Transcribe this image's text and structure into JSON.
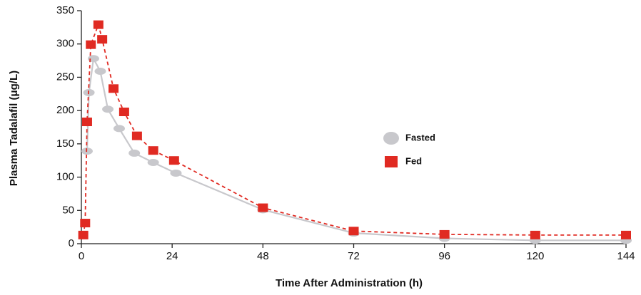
{
  "chart_data": {
    "type": "line",
    "x_label": "Time After Administration (h)",
    "y_label": "Plasma Tadalafil (μg/L)",
    "xlim": [
      0,
      144
    ],
    "xticks": [
      0,
      24,
      48,
      72,
      96,
      120,
      144
    ],
    "ylim": [
      0,
      350
    ],
    "yticks": [
      0,
      50,
      100,
      150,
      200,
      250,
      300,
      350
    ],
    "grid": false,
    "legend": "center",
    "series": [
      {
        "name": "Fasted",
        "color": "#c8c8cc",
        "marker": "ellipse",
        "dashed": false,
        "x": [
          1.5,
          2,
          3.2,
          5,
          7,
          10,
          14,
          19,
          25,
          48,
          72,
          96,
          120,
          144
        ],
        "values": [
          139,
          227,
          278,
          259,
          202,
          173,
          136,
          122,
          106,
          51,
          16,
          8,
          5,
          5
        ]
      },
      {
        "name": "Fed",
        "color": "#e02a22",
        "marker": "square",
        "dashed": true,
        "x": [
          0.5,
          1,
          1.5,
          2.5,
          4.5,
          5.5,
          8.5,
          11.3,
          14.7,
          19,
          24.5,
          48,
          72,
          96,
          120,
          144
        ],
        "values": [
          13,
          31,
          183,
          299,
          329,
          307,
          233,
          198,
          162,
          140,
          125,
          54,
          19,
          14,
          13,
          13
        ]
      }
    ]
  }
}
